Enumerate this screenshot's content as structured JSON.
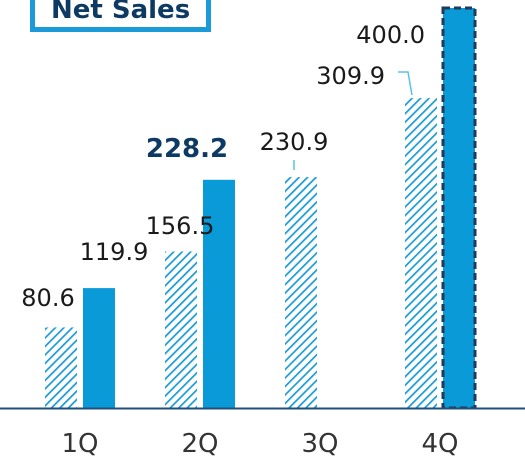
{
  "chart_data": {
    "type": "bar",
    "title": "Net Sales",
    "categories": [
      "1Q",
      "2Q",
      "3Q",
      "4Q"
    ],
    "series": [
      {
        "style": "hatched",
        "values": [
          80.6,
          156.5,
          230.9,
          309.9
        ],
        "labels": [
          "80.6",
          "156.5",
          "230.9",
          "309.9"
        ]
      },
      {
        "style": "solid",
        "values": [
          119.9,
          228.2,
          null,
          400.0
        ],
        "labels": [
          "119.9",
          "228.2",
          "",
          "400.0"
        ],
        "emphasized_label_index": 1,
        "forecast_index": 3
      }
    ],
    "ylim": [
      0,
      400
    ],
    "grid": false,
    "legend": "none",
    "colors": {
      "bar": "#0a9ad8",
      "hatch": "#1a9ad6",
      "axis": "#1f4e79",
      "text": "#1a1a1a",
      "emphasis": "#0d3a63",
      "leader": "#5bc0eb",
      "forecast_border": "#1f3b57"
    }
  }
}
